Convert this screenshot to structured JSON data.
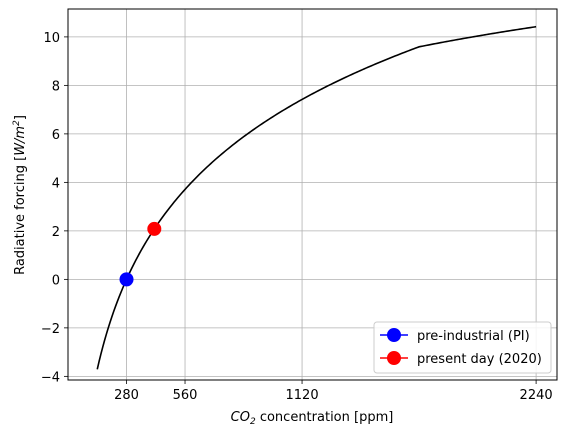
{
  "chart_data": {
    "type": "line",
    "xlabel": "CO2 concentration [ppm]",
    "xlabel_parts": {
      "base": "CO",
      "sub": "2",
      "rest": " concentration [ppm]"
    },
    "ylabel": "Radiative forcing [W/m2]",
    "ylabel_parts": {
      "prefix": "Radiative forcing [",
      "var": "W/m",
      "sup": "2",
      "suffix": "]"
    },
    "xticks": [
      280,
      560,
      1120,
      2240
    ],
    "yticks": [
      -4,
      -2,
      0,
      2,
      4,
      6,
      8,
      10
    ],
    "ytick_labels": [
      "−4",
      "−2",
      "0",
      "2",
      "4",
      "6",
      "8",
      "10"
    ],
    "xlim": [
      0,
      2340
    ],
    "ylim": [
      -4.15,
      11.15
    ],
    "grid": true,
    "legend_position": "lower right",
    "series": [
      {
        "x": [
          140,
          200,
          280,
          420,
          560,
          840,
          1120,
          1680,
          2240
        ],
        "y": [
          -3.71,
          -1.9,
          0.0,
          2.17,
          3.71,
          5.88,
          7.42,
          9.59,
          10.42
        ],
        "color": "#000000"
      },
      {
        "name": "pre-industrial (PI)",
        "x": [
          280
        ],
        "y": [
          0.0
        ],
        "color": "#0000ff",
        "marker": "circle"
      },
      {
        "name": "present day (2020)",
        "x": [
          413
        ],
        "y": [
          2.08
        ],
        "color": "#ff0000",
        "marker": "circle"
      }
    ]
  }
}
